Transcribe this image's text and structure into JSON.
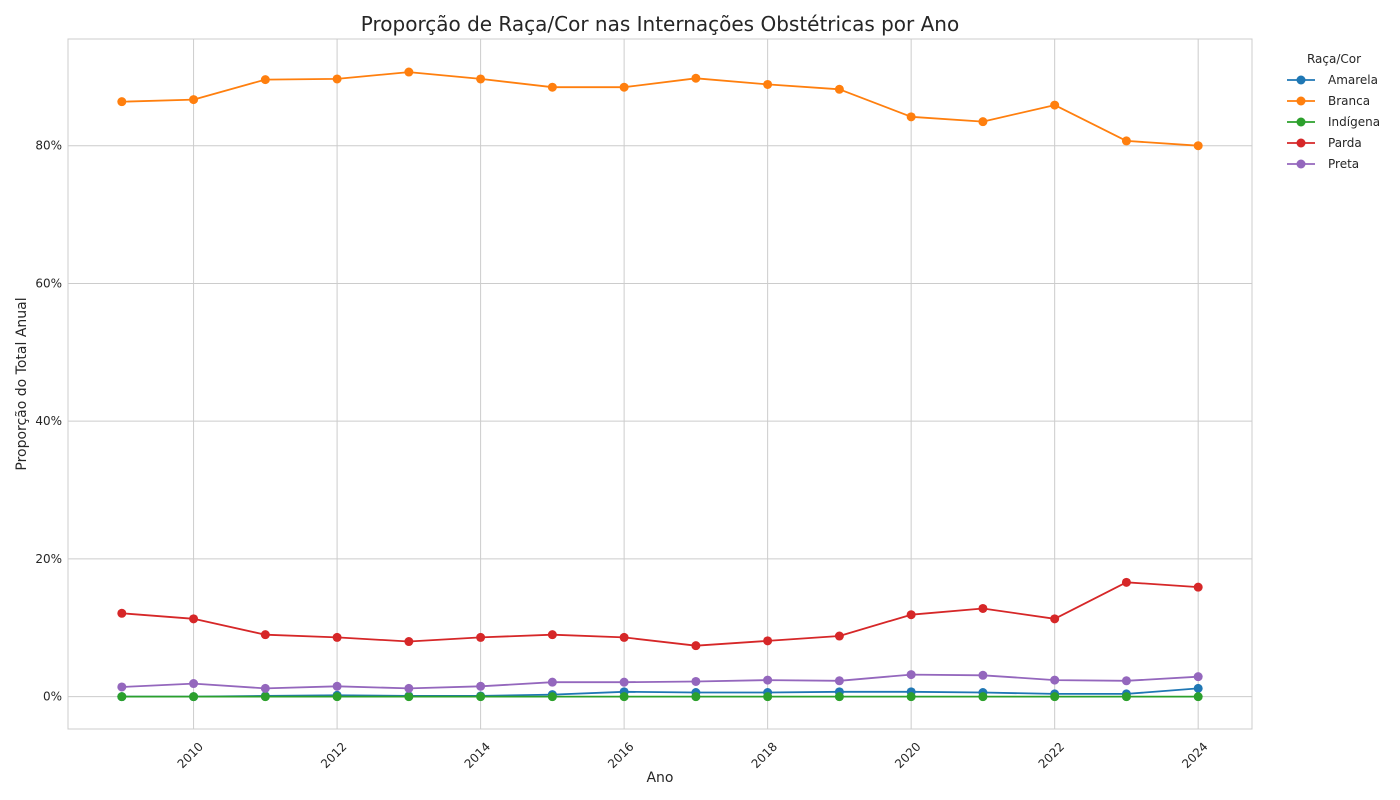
{
  "chart_data": {
    "type": "line",
    "title": "Proporção de Raça/Cor nas Internações Obstétricas por Ano",
    "xlabel": "Ano",
    "ylabel": "Proporção do Total Anual",
    "xlim": [
      2008.25,
      2024.75
    ],
    "ylim": [
      -0.047,
      0.955
    ],
    "x_ticks": [
      2010,
      2012,
      2014,
      2016,
      2018,
      2020,
      2022,
      2024
    ],
    "x_tick_labels": [
      "2010",
      "2012",
      "2014",
      "2016",
      "2018",
      "2020",
      "2022",
      "2024"
    ],
    "y_ticks": [
      0,
      0.2,
      0.4,
      0.6,
      0.8
    ],
    "y_tick_labels": [
      "0%",
      "20%",
      "40%",
      "60%",
      "80%"
    ],
    "grid": true,
    "legend": {
      "title": "Raça/Cor",
      "placement": "outside-top-right"
    },
    "x": [
      2009,
      2010,
      2011,
      2012,
      2013,
      2014,
      2015,
      2016,
      2017,
      2018,
      2019,
      2020,
      2021,
      2022,
      2023,
      2024
    ],
    "series": [
      {
        "name": "Amarela",
        "color": "#1f77b4",
        "values": [
          0.0,
          0.0,
          0.001,
          0.002,
          0.001,
          0.001,
          0.003,
          0.007,
          0.006,
          0.006,
          0.007,
          0.007,
          0.006,
          0.004,
          0.004,
          0.012
        ]
      },
      {
        "name": "Branca",
        "color": "#ff7f0e",
        "values": [
          0.864,
          0.867,
          0.896,
          0.897,
          0.907,
          0.897,
          0.885,
          0.885,
          0.898,
          0.889,
          0.882,
          0.842,
          0.835,
          0.859,
          0.807,
          0.8
        ]
      },
      {
        "name": "Indígena",
        "color": "#2ca02c",
        "values": [
          0.0,
          0.0,
          0.0,
          0.0,
          0.0,
          0.0,
          0.0,
          0.0,
          0.0,
          0.0,
          0.0,
          0.0,
          0.0,
          0.0,
          0.0,
          0.0
        ]
      },
      {
        "name": "Parda",
        "color": "#d62728",
        "values": [
          0.121,
          0.113,
          0.09,
          0.086,
          0.08,
          0.086,
          0.09,
          0.086,
          0.074,
          0.081,
          0.088,
          0.119,
          0.128,
          0.113,
          0.166,
          0.159
        ]
      },
      {
        "name": "Preta",
        "color": "#9467bd",
        "values": [
          0.014,
          0.019,
          0.012,
          0.015,
          0.012,
          0.015,
          0.021,
          0.021,
          0.022,
          0.024,
          0.023,
          0.032,
          0.031,
          0.024,
          0.023,
          0.029
        ]
      }
    ]
  }
}
